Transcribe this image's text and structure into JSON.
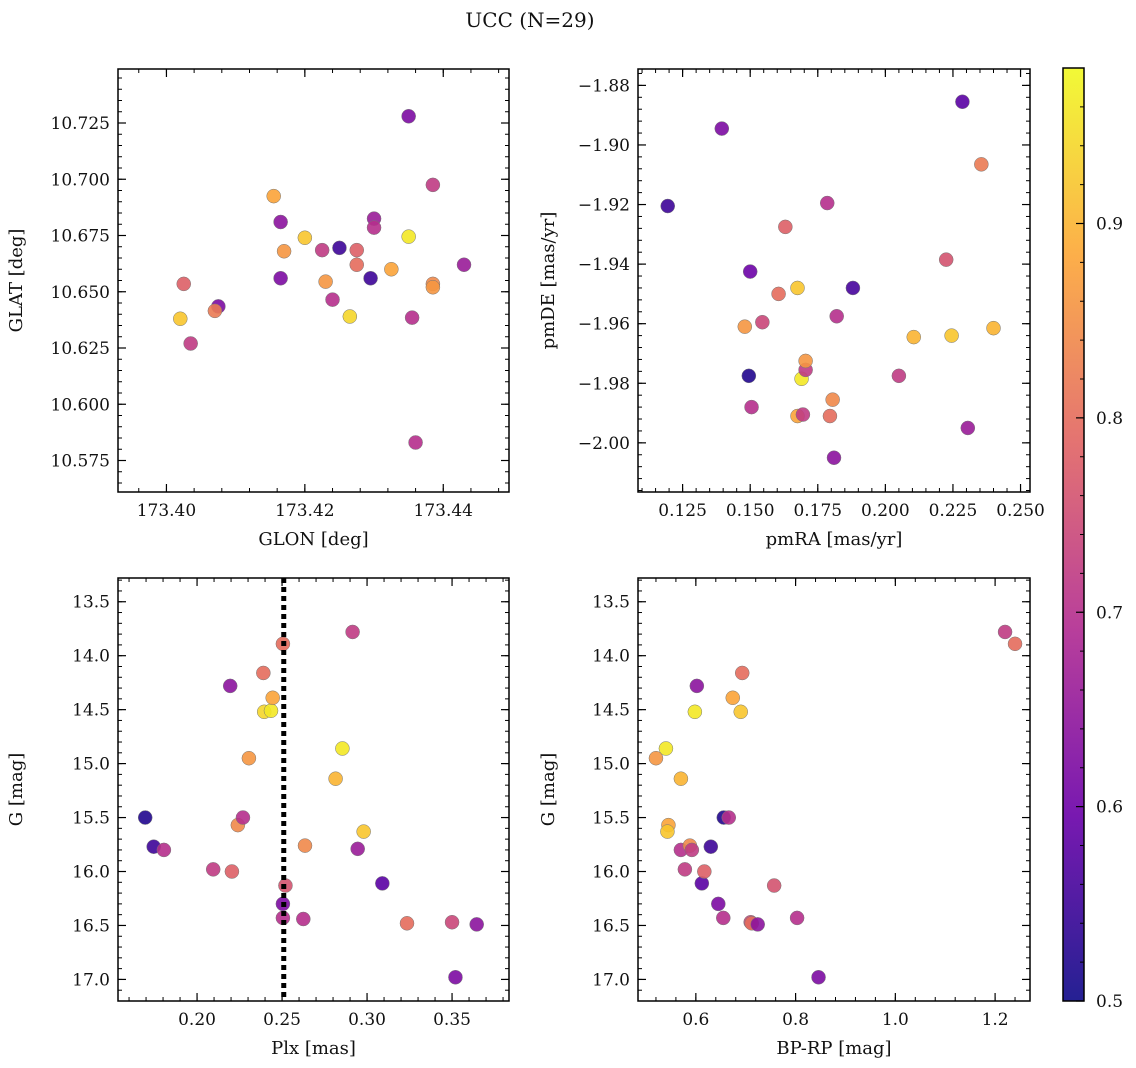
{
  "title": "UCC (N=29)",
  "colorbar": {
    "min": 0.5,
    "max": 0.98,
    "ticks": [
      0.5,
      0.6,
      0.7,
      0.8,
      0.9
    ],
    "tick_labels": [
      "0.5",
      "0.6",
      "0.7",
      "0.8",
      "0.9"
    ],
    "colormap": [
      "#0d0887",
      "#6a00a8",
      "#b12a90",
      "#e16462",
      "#fca636",
      "#f0f921"
    ]
  },
  "chart_data": [
    {
      "type": "scatter",
      "panel": "top-left",
      "xlabel": "GLON [deg]",
      "ylabel": "GLAT [deg]",
      "xlim": [
        173.393,
        173.4495
      ],
      "ylim": [
        10.561,
        10.749
      ],
      "y_inverted": false,
      "xticks": [
        173.4,
        173.42,
        173.44
      ],
      "xtick_labels": [
        "173.40",
        "173.42",
        "173.44"
      ],
      "yticks": [
        10.575,
        10.6,
        10.625,
        10.65,
        10.675,
        10.7,
        10.725
      ],
      "ytick_labels": [
        "10.575",
        "10.600",
        "10.625",
        "10.650",
        "10.675",
        "10.700",
        "10.725"
      ],
      "points": [
        {
          "x": 173.4035,
          "y": 10.627,
          "c": 0.72
        },
        {
          "x": 173.4025,
          "y": 10.6535,
          "c": 0.78
        },
        {
          "x": 173.402,
          "y": 10.638,
          "c": 0.92
        },
        {
          "x": 173.4075,
          "y": 10.6435,
          "c": 0.62
        },
        {
          "x": 173.407,
          "y": 10.6415,
          "c": 0.82
        },
        {
          "x": 173.4155,
          "y": 10.6925,
          "c": 0.88
        },
        {
          "x": 173.4165,
          "y": 10.681,
          "c": 0.64
        },
        {
          "x": 173.4165,
          "y": 10.656,
          "c": 0.62
        },
        {
          "x": 173.417,
          "y": 10.668,
          "c": 0.86
        },
        {
          "x": 173.42,
          "y": 10.674,
          "c": 0.92
        },
        {
          "x": 173.4225,
          "y": 10.6685,
          "c": 0.72
        },
        {
          "x": 173.423,
          "y": 10.6545,
          "c": 0.86
        },
        {
          "x": 173.424,
          "y": 10.6465,
          "c": 0.7
        },
        {
          "x": 173.425,
          "y": 10.6695,
          "c": 0.55
        },
        {
          "x": 173.4265,
          "y": 10.639,
          "c": 0.94
        },
        {
          "x": 173.4275,
          "y": 10.6685,
          "c": 0.78
        },
        {
          "x": 173.4275,
          "y": 10.662,
          "c": 0.8
        },
        {
          "x": 173.43,
          "y": 10.6825,
          "c": 0.66
        },
        {
          "x": 173.43,
          "y": 10.6785,
          "c": 0.7
        },
        {
          "x": 173.4295,
          "y": 10.656,
          "c": 0.55
        },
        {
          "x": 173.4325,
          "y": 10.66,
          "c": 0.88
        },
        {
          "x": 173.435,
          "y": 10.728,
          "c": 0.62
        },
        {
          "x": 173.435,
          "y": 10.6745,
          "c": 0.96
        },
        {
          "x": 173.4355,
          "y": 10.6385,
          "c": 0.7
        },
        {
          "x": 173.436,
          "y": 10.583,
          "c": 0.7
        },
        {
          "x": 173.4385,
          "y": 10.6975,
          "c": 0.72
        },
        {
          "x": 173.4385,
          "y": 10.6535,
          "c": 0.84
        },
        {
          "x": 173.4385,
          "y": 10.652,
          "c": 0.86
        },
        {
          "x": 173.443,
          "y": 10.662,
          "c": 0.66
        }
      ]
    },
    {
      "type": "scatter",
      "panel": "top-right",
      "xlabel": "pmRA [mas/yr]",
      "ylabel": "pmDE [mas/yr]",
      "xlim": [
        0.1085,
        0.2535
      ],
      "ylim": [
        -2.0165,
        -1.8745
      ],
      "y_inverted": false,
      "xticks": [
        0.125,
        0.15,
        0.175,
        0.2,
        0.225,
        0.25
      ],
      "xtick_labels": [
        "0.125",
        "0.150",
        "0.175",
        "0.200",
        "0.225",
        "0.250"
      ],
      "yticks": [
        -2.0,
        -1.98,
        -1.96,
        -1.94,
        -1.92,
        -1.9,
        -1.88
      ],
      "ytick_labels": [
        "−2.00",
        "−1.98",
        "−1.96",
        "−1.94",
        "−1.92",
        "−1.90",
        "−1.88"
      ],
      "points": [
        {
          "x": 0.1195,
          "y": -1.9205,
          "c": 0.55
        },
        {
          "x": 0.1395,
          "y": -1.8945,
          "c": 0.62
        },
        {
          "x": 0.1495,
          "y": -1.9775,
          "c": 0.52
        },
        {
          "x": 0.15,
          "y": -1.9425,
          "c": 0.6
        },
        {
          "x": 0.1505,
          "y": -1.988,
          "c": 0.7
        },
        {
          "x": 0.148,
          "y": -1.961,
          "c": 0.86
        },
        {
          "x": 0.1545,
          "y": -1.9595,
          "c": 0.74
        },
        {
          "x": 0.1605,
          "y": -1.95,
          "c": 0.8
        },
        {
          "x": 0.163,
          "y": -1.9275,
          "c": 0.78
        },
        {
          "x": 0.1675,
          "y": -1.948,
          "c": 0.92
        },
        {
          "x": 0.1675,
          "y": -1.991,
          "c": 0.88
        },
        {
          "x": 0.169,
          "y": -1.9785,
          "c": 0.96
        },
        {
          "x": 0.1695,
          "y": -1.9905,
          "c": 0.72
        },
        {
          "x": 0.1705,
          "y": -1.9755,
          "c": 0.72
        },
        {
          "x": 0.1705,
          "y": -1.9725,
          "c": 0.86
        },
        {
          "x": 0.1785,
          "y": -1.9195,
          "c": 0.7
        },
        {
          "x": 0.1795,
          "y": -1.991,
          "c": 0.8
        },
        {
          "x": 0.1805,
          "y": -1.9855,
          "c": 0.84
        },
        {
          "x": 0.181,
          "y": -2.005,
          "c": 0.64
        },
        {
          "x": 0.182,
          "y": -1.9575,
          "c": 0.7
        },
        {
          "x": 0.188,
          "y": -1.948,
          "c": 0.56
        },
        {
          "x": 0.205,
          "y": -1.9775,
          "c": 0.72
        },
        {
          "x": 0.2105,
          "y": -1.9645,
          "c": 0.9
        },
        {
          "x": 0.2225,
          "y": -1.9385,
          "c": 0.76
        },
        {
          "x": 0.2245,
          "y": -1.964,
          "c": 0.92
        },
        {
          "x": 0.2285,
          "y": -1.8855,
          "c": 0.58
        },
        {
          "x": 0.2305,
          "y": -1.995,
          "c": 0.66
        },
        {
          "x": 0.2355,
          "y": -1.9065,
          "c": 0.82
        },
        {
          "x": 0.24,
          "y": -1.9615,
          "c": 0.9
        }
      ]
    },
    {
      "type": "scatter",
      "panel": "bottom-left",
      "xlabel": "Plx [mas]",
      "ylabel": "G [mag]",
      "xlim": [
        0.1535,
        0.3835
      ],
      "ylim": [
        17.2,
        13.28
      ],
      "y_inverted": true,
      "xticks": [
        0.2,
        0.25,
        0.3,
        0.35
      ],
      "xtick_labels": [
        "0.20",
        "0.25",
        "0.30",
        "0.35"
      ],
      "yticks": [
        13.5,
        14.0,
        14.5,
        15.0,
        15.5,
        16.0,
        16.5,
        17.0
      ],
      "ytick_labels": [
        "13.5",
        "14.0",
        "14.5",
        "15.0",
        "15.5",
        "16.0",
        "16.5",
        "17.0"
      ],
      "vline": {
        "x": 0.251,
        "style": "dotted",
        "color": "#000000"
      },
      "points": [
        {
          "x": 0.1695,
          "y": 15.5,
          "c": 0.52
        },
        {
          "x": 0.1745,
          "y": 15.77,
          "c": 0.55
        },
        {
          "x": 0.1805,
          "y": 15.8,
          "c": 0.7
        },
        {
          "x": 0.2095,
          "y": 15.98,
          "c": 0.72
        },
        {
          "x": 0.2195,
          "y": 14.28,
          "c": 0.64
        },
        {
          "x": 0.2205,
          "y": 16.0,
          "c": 0.78
        },
        {
          "x": 0.224,
          "y": 15.57,
          "c": 0.84
        },
        {
          "x": 0.227,
          "y": 15.5,
          "c": 0.7
        },
        {
          "x": 0.2305,
          "y": 14.95,
          "c": 0.86
        },
        {
          "x": 0.239,
          "y": 14.16,
          "c": 0.8
        },
        {
          "x": 0.2395,
          "y": 14.52,
          "c": 0.94
        },
        {
          "x": 0.2435,
          "y": 14.51,
          "c": 0.96
        },
        {
          "x": 0.2445,
          "y": 14.39,
          "c": 0.88
        },
        {
          "x": 0.2505,
          "y": 13.89,
          "c": 0.8
        },
        {
          "x": 0.2505,
          "y": 16.3,
          "c": 0.62
        },
        {
          "x": 0.2505,
          "y": 16.43,
          "c": 0.7
        },
        {
          "x": 0.252,
          "y": 16.13,
          "c": 0.76
        },
        {
          "x": 0.2625,
          "y": 16.44,
          "c": 0.7
        },
        {
          "x": 0.2635,
          "y": 15.76,
          "c": 0.84
        },
        {
          "x": 0.2815,
          "y": 15.14,
          "c": 0.9
        },
        {
          "x": 0.2855,
          "y": 14.86,
          "c": 0.96
        },
        {
          "x": 0.2915,
          "y": 13.78,
          "c": 0.72
        },
        {
          "x": 0.2945,
          "y": 15.79,
          "c": 0.66
        },
        {
          "x": 0.298,
          "y": 15.63,
          "c": 0.92
        },
        {
          "x": 0.309,
          "y": 16.11,
          "c": 0.58
        },
        {
          "x": 0.3235,
          "y": 16.48,
          "c": 0.8
        },
        {
          "x": 0.35,
          "y": 16.47,
          "c": 0.74
        },
        {
          "x": 0.352,
          "y": 16.98,
          "c": 0.62
        },
        {
          "x": 0.3645,
          "y": 16.49,
          "c": 0.64
        }
      ]
    },
    {
      "type": "scatter",
      "panel": "bottom-right",
      "xlabel": "BP-RP [mag]",
      "ylabel": "G [mag]",
      "xlim": [
        0.484,
        1.27
      ],
      "ylim": [
        17.2,
        13.28
      ],
      "y_inverted": true,
      "xticks": [
        0.6,
        0.8,
        1.0,
        1.2
      ],
      "xtick_labels": [
        "0.6",
        "0.8",
        "1.0",
        "1.2"
      ],
      "yticks": [
        13.5,
        14.0,
        14.5,
        15.0,
        15.5,
        16.0,
        16.5,
        17.0
      ],
      "ytick_labels": [
        "13.5",
        "14.0",
        "14.5",
        "15.0",
        "15.5",
        "16.0",
        "16.5",
        "17.0"
      ],
      "points": [
        {
          "x": 0.52,
          "y": 14.95,
          "c": 0.86
        },
        {
          "x": 0.54,
          "y": 14.86,
          "c": 0.96
        },
        {
          "x": 0.545,
          "y": 15.57,
          "c": 0.88
        },
        {
          "x": 0.543,
          "y": 15.63,
          "c": 0.92
        },
        {
          "x": 0.57,
          "y": 15.14,
          "c": 0.9
        },
        {
          "x": 0.57,
          "y": 15.8,
          "c": 0.7
        },
        {
          "x": 0.578,
          "y": 15.98,
          "c": 0.72
        },
        {
          "x": 0.588,
          "y": 15.76,
          "c": 0.84
        },
        {
          "x": 0.592,
          "y": 15.8,
          "c": 0.72
        },
        {
          "x": 0.598,
          "y": 14.52,
          "c": 0.96
        },
        {
          "x": 0.602,
          "y": 14.28,
          "c": 0.64
        },
        {
          "x": 0.612,
          "y": 16.11,
          "c": 0.58
        },
        {
          "x": 0.617,
          "y": 16.0,
          "c": 0.78
        },
        {
          "x": 0.63,
          "y": 15.77,
          "c": 0.55
        },
        {
          "x": 0.645,
          "y": 16.3,
          "c": 0.62
        },
        {
          "x": 0.655,
          "y": 16.43,
          "c": 0.7
        },
        {
          "x": 0.656,
          "y": 15.5,
          "c": 0.52
        },
        {
          "x": 0.666,
          "y": 15.5,
          "c": 0.7
        },
        {
          "x": 0.674,
          "y": 14.39,
          "c": 0.88
        },
        {
          "x": 0.69,
          "y": 14.52,
          "c": 0.92
        },
        {
          "x": 0.693,
          "y": 14.16,
          "c": 0.8
        },
        {
          "x": 0.71,
          "y": 16.47,
          "c": 0.74
        },
        {
          "x": 0.712,
          "y": 16.48,
          "c": 0.8
        },
        {
          "x": 0.724,
          "y": 16.49,
          "c": 0.64
        },
        {
          "x": 0.757,
          "y": 16.13,
          "c": 0.76
        },
        {
          "x": 0.803,
          "y": 16.43,
          "c": 0.7
        },
        {
          "x": 0.846,
          "y": 16.98,
          "c": 0.62
        },
        {
          "x": 1.22,
          "y": 13.78,
          "c": 0.72
        },
        {
          "x": 1.24,
          "y": 13.89,
          "c": 0.8
        }
      ]
    }
  ]
}
